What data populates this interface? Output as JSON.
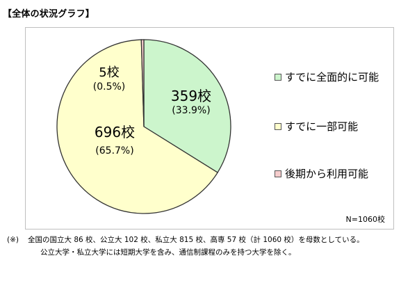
{
  "heading": "【全体の状況グラフ】",
  "chart_data": {
    "type": "pie",
    "title": "",
    "slices": [
      {
        "name": "すでに全面的に可能",
        "value": 359,
        "count_label": "359校",
        "percent_label": "(33.9%)",
        "color": "#ccf5cc"
      },
      {
        "name": "すでに一部可能",
        "value": 696,
        "count_label": "696校",
        "percent_label": "(65.7%)",
        "color": "#ffffcc"
      },
      {
        "name": "後期から利用可能",
        "value": 5,
        "count_label": "5校",
        "percent_label": "(0.5%)",
        "color": "#f5cccc"
      }
    ],
    "start_angle_deg": 0,
    "direction": "clockwise",
    "legend_position": "right",
    "edge_color": "#333333",
    "note": "N=1060校"
  },
  "footnote": {
    "mark": "(※)",
    "line1": "全国の国立大 86 校、公立大 102 校、私立大 815 校、高専 57 校（計 1060 校）を母数としている。",
    "line2": "公立大学・私立大学には短期大学を含み、通信制課程のみを持つ大学を除く。"
  }
}
